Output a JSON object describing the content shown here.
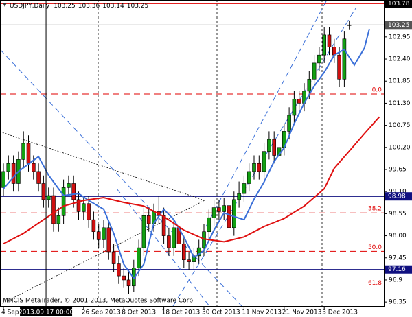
{
  "chart_data": {
    "type": "candlestick",
    "title": "USDJPY,Daily",
    "footer": "MMCIS MetaTrader, © 2001-2013, MetaQuotes Software Corp.",
    "open": [
      99.2,
      99.6,
      99.8,
      99.3,
      99.9,
      100.3,
      99.8,
      99.6,
      99.3,
      98.9,
      99.0,
      98.3,
      98.5,
      99.2,
      99.3,
      98.9,
      98.6,
      98.8,
      98.4,
      98.1,
      97.9,
      98.2,
      97.6,
      97.3,
      97.0,
      96.9,
      96.75,
      97.2,
      97.7,
      98.5,
      98.3,
      98.6,
      98.5,
      98.0,
      97.7,
      98.2,
      97.8,
      97.4,
      97.35,
      97.5,
      97.7,
      98.1,
      98.45,
      98.7,
      98.6,
      98.75,
      98.2,
      98.9,
      99.05,
      99.3,
      99.6,
      99.8,
      99.6,
      100.1,
      100.4,
      100.0,
      100.2,
      100.6,
      101.0,
      101.4,
      101.3,
      101.6,
      101.9,
      102.3,
      102.5,
      103.0,
      102.7,
      102.5,
      101.9,
      103.25
    ],
    "high": [
      99.8,
      100.0,
      100.0,
      100.1,
      100.6,
      100.5,
      100.0,
      99.8,
      99.5,
      99.2,
      99.2,
      98.7,
      99.4,
      99.5,
      99.5,
      99.1,
      99.0,
      99.0,
      98.6,
      98.3,
      98.4,
      98.4,
      97.8,
      97.5,
      97.2,
      97.1,
      97.4,
      97.9,
      98.7,
      98.7,
      98.8,
      99.0,
      98.7,
      98.2,
      98.4,
      98.4,
      98.0,
      97.6,
      97.7,
      97.9,
      98.3,
      98.65,
      98.9,
      98.9,
      98.95,
      98.95,
      99.1,
      99.35,
      99.5,
      99.8,
      100.0,
      100.0,
      100.3,
      100.6,
      100.6,
      100.4,
      100.8,
      101.2,
      101.6,
      101.6,
      101.8,
      102.1,
      102.5,
      102.7,
      103.2,
      103.2,
      102.9,
      102.7,
      103.1,
      103.36
    ],
    "low": [
      99.0,
      99.4,
      99.1,
      99.1,
      99.7,
      99.6,
      99.4,
      99.1,
      98.7,
      98.7,
      98.1,
      98.1,
      98.3,
      99.0,
      98.7,
      98.4,
      98.4,
      98.2,
      97.9,
      97.7,
      97.7,
      97.4,
      97.1,
      96.8,
      96.7,
      96.55,
      96.6,
      97.0,
      97.5,
      98.1,
      98.1,
      98.3,
      97.8,
      97.5,
      97.5,
      97.6,
      97.2,
      97.15,
      97.15,
      97.3,
      97.5,
      97.9,
      98.25,
      98.4,
      98.4,
      97.9,
      98.0,
      98.7,
      98.85,
      99.1,
      99.4,
      99.4,
      99.4,
      99.9,
      99.8,
      99.8,
      100.0,
      100.4,
      100.8,
      101.1,
      101.1,
      101.4,
      101.7,
      102.1,
      102.3,
      102.5,
      102.3,
      101.7,
      101.7,
      103.14
    ],
    "close": [
      99.6,
      99.8,
      99.3,
      99.9,
      100.3,
      99.8,
      99.6,
      99.3,
      98.9,
      99.0,
      98.3,
      98.5,
      99.2,
      99.3,
      98.9,
      98.6,
      98.8,
      98.4,
      98.1,
      97.9,
      98.2,
      97.6,
      97.3,
      97.0,
      96.9,
      96.75,
      97.2,
      97.7,
      98.5,
      98.3,
      98.6,
      98.5,
      98.0,
      97.7,
      98.2,
      97.8,
      97.4,
      97.35,
      97.5,
      97.7,
      98.1,
      98.45,
      98.7,
      98.6,
      98.75,
      98.2,
      98.9,
      99.05,
      99.3,
      99.6,
      99.8,
      99.6,
      100.1,
      100.4,
      100.0,
      100.2,
      100.6,
      101.0,
      101.4,
      101.3,
      101.6,
      101.9,
      102.3,
      102.5,
      103.0,
      102.7,
      102.5,
      101.9,
      102.9,
      103.25
    ],
    "up_color": "#12a012",
    "down_color": "#d01010",
    "indicators": [
      {
        "color": "#3a6fd8",
        "x": [
          0,
          3,
          7,
          9,
          12,
          15,
          17,
          20,
          22,
          24,
          26,
          28,
          30,
          32,
          34,
          36,
          38,
          40,
          42,
          44,
          46,
          48,
          50,
          52,
          54,
          56,
          58,
          60,
          62,
          64,
          66,
          68,
          70,
          72,
          73
        ],
        "values": [
          99.17,
          99.6,
          99.97,
          99.51,
          99.0,
          99.05,
          98.88,
          98.66,
          98.06,
          97.29,
          96.94,
          97.29,
          98.31,
          98.66,
          98.4,
          97.97,
          97.46,
          97.63,
          98.14,
          98.57,
          98.48,
          98.4,
          98.91,
          99.34,
          99.85,
          100.19,
          100.79,
          101.3,
          101.73,
          102.07,
          102.5,
          102.64,
          102.25,
          102.67,
          103.15
        ]
      },
      {
        "color": "#e01010",
        "x": [
          0,
          4,
          8,
          12,
          16,
          20,
          24,
          28,
          32,
          36,
          40,
          44,
          48,
          52,
          56,
          60,
          64,
          66,
          69,
          72,
          75
        ],
        "values": [
          97.8,
          98.06,
          98.4,
          98.74,
          98.88,
          98.95,
          98.83,
          98.74,
          98.48,
          98.14,
          97.92,
          97.85,
          97.97,
          98.23,
          98.43,
          98.74,
          99.17,
          99.68,
          100.11,
          100.54,
          100.96
        ]
      }
    ],
    "levels": [
      {
        "value": 103.78,
        "color": "#e00000",
        "box": "#000000"
      },
      {
        "value": 98.98,
        "color": "#101080",
        "box": "#101080"
      },
      {
        "value": 97.16,
        "color": "#101080",
        "box": "#101080"
      }
    ],
    "fibonacci": [
      {
        "level": "0.0",
        "value": 101.53
      },
      {
        "level": "38.2",
        "value": 98.57
      },
      {
        "level": "50.0",
        "value": 97.61
      },
      {
        "level": "61.8",
        "value": 96.72
      }
    ],
    "fib_color": "#e00000",
    "ylim": [
      96.25,
      103.87
    ],
    "yticks": [
      96.35,
      96.9,
      97.45,
      {
        "value": 98.0,
        "label": "98.00"
      },
      98.55,
      {
        "value": 99.1,
        "label": "99.10"
      },
      99.65,
      {
        "value": 100.2,
        "label": "100.20"
      },
      100.75,
      {
        "value": 101.3,
        "label": "101.30"
      },
      101.85,
      {
        "value": 102.4,
        "label": "102.40"
      },
      102.95
    ],
    "xticks": [
      {
        "value": 0,
        "label": "4 Sep 2"
      },
      {
        "value": 16,
        "label": "26 Sep 2013"
      },
      {
        "value": 24,
        "label": "8 Oct 2013"
      },
      {
        "value": 32,
        "label": "18 Oct 2013"
      },
      {
        "value": 40,
        "label": "30 Oct 2013"
      },
      {
        "value": 48,
        "label": "11 Nov 2013"
      },
      {
        "value": 56,
        "label": "21 Nov 2013"
      },
      {
        "value": 64,
        "label": "3 Dec 2013"
      }
    ],
    "crosshair": {
      "x": 8.5,
      "label": "2013.09.17 00:00"
    }
  }
}
